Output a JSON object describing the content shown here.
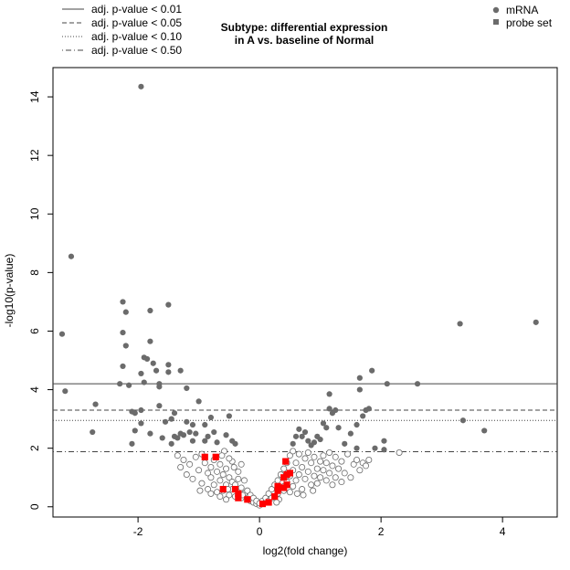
{
  "chart_data": {
    "type": "scatter",
    "title": [
      "Subtype: differential expression",
      "in A vs. baseline of Normal"
    ],
    "xlabel": "log2(fold change)",
    "ylabel": "-log10(p-value)",
    "xlim": [
      -3.4,
      4.9
    ],
    "ylim": [
      -0.35,
      15.0
    ],
    "x_ticks": [
      -2,
      0,
      2,
      4
    ],
    "y_ticks": [
      0,
      2,
      4,
      6,
      8,
      10,
      12,
      14
    ],
    "colors": {
      "significant": "#6b6b6b",
      "nonsignificant_stroke": "#6b6b6b",
      "probe_set": "#ff0000",
      "threshold_line": "#444444"
    },
    "legend_lines": [
      {
        "label": "adj. p-value < 0.01",
        "style": "solid",
        "y": 4.2
      },
      {
        "label": "adj. p-value < 0.05",
        "style": "dashed",
        "y": 3.3
      },
      {
        "label": "adj. p-value < 0.10",
        "style": "dotted",
        "y": 2.95
      },
      {
        "label": "adj. p-value < 0.50",
        "style": "dotdash",
        "y": 1.88
      }
    ],
    "legend_markers": [
      {
        "label": "mRNA",
        "shape": "circle"
      },
      {
        "label": "probe set",
        "shape": "square"
      }
    ],
    "series": [
      {
        "name": "mRNA (significant)",
        "marker": "filled-circle",
        "points": [
          [
            -1.95,
            14.35
          ],
          [
            -3.1,
            8.55
          ],
          [
            -3.25,
            5.9
          ],
          [
            -3.2,
            3.95
          ],
          [
            -2.7,
            3.5
          ],
          [
            -2.75,
            2.55
          ],
          [
            -2.25,
            7.0
          ],
          [
            -2.2,
            6.65
          ],
          [
            -2.25,
            5.95
          ],
          [
            -2.2,
            5.5
          ],
          [
            -2.25,
            4.8
          ],
          [
            -2.3,
            4.2
          ],
          [
            -2.15,
            4.15
          ],
          [
            -2.1,
            3.25
          ],
          [
            -2.05,
            3.2
          ],
          [
            -2.1,
            2.15
          ],
          [
            -2.05,
            2.6
          ],
          [
            -1.8,
            6.7
          ],
          [
            -1.8,
            5.65
          ],
          [
            -1.85,
            5.05
          ],
          [
            -1.9,
            5.1
          ],
          [
            -1.75,
            4.9
          ],
          [
            -1.95,
            4.55
          ],
          [
            -1.9,
            4.25
          ],
          [
            -1.7,
            4.65
          ],
          [
            -1.65,
            4.2
          ],
          [
            -1.65,
            4.1
          ],
          [
            -1.5,
            6.9
          ],
          [
            -1.5,
            4.85
          ],
          [
            -1.5,
            4.6
          ],
          [
            -1.3,
            4.65
          ],
          [
            -1.2,
            4.05
          ],
          [
            -1.95,
            3.3
          ],
          [
            -1.95,
            2.85
          ],
          [
            -1.8,
            2.5
          ],
          [
            -1.65,
            3.45
          ],
          [
            -1.55,
            2.9
          ],
          [
            -1.6,
            2.35
          ],
          [
            -1.45,
            3.0
          ],
          [
            -1.4,
            3.2
          ],
          [
            -1.45,
            2.15
          ],
          [
            -1.4,
            2.4
          ],
          [
            -1.35,
            2.35
          ],
          [
            -1.3,
            2.5
          ],
          [
            -1.25,
            2.45
          ],
          [
            -1.2,
            2.9
          ],
          [
            -1.15,
            2.55
          ],
          [
            -1.1,
            2.8
          ],
          [
            -1.1,
            2.25
          ],
          [
            -1.05,
            2.5
          ],
          [
            -1.0,
            3.6
          ],
          [
            -0.9,
            2.25
          ],
          [
            -0.9,
            2.8
          ],
          [
            -0.85,
            2.4
          ],
          [
            -0.8,
            3.05
          ],
          [
            -0.75,
            2.55
          ],
          [
            -0.7,
            2.2
          ],
          [
            -0.55,
            2.45
          ],
          [
            -0.5,
            3.1
          ],
          [
            -0.45,
            2.25
          ],
          [
            -0.4,
            2.15
          ],
          [
            1.15,
            3.85
          ],
          [
            1.15,
            3.35
          ],
          [
            1.2,
            3.2
          ],
          [
            1.25,
            3.3
          ],
          [
            1.3,
            2.7
          ],
          [
            1.05,
            2.85
          ],
          [
            0.95,
            2.4
          ],
          [
            0.9,
            2.2
          ],
          [
            0.85,
            2.1
          ],
          [
            0.8,
            2.25
          ],
          [
            0.75,
            2.55
          ],
          [
            0.7,
            2.4
          ],
          [
            0.65,
            2.65
          ],
          [
            0.6,
            2.4
          ],
          [
            0.55,
            2.15
          ],
          [
            1.0,
            2.3
          ],
          [
            1.1,
            2.7
          ],
          [
            1.4,
            2.15
          ],
          [
            1.5,
            2.5
          ],
          [
            1.6,
            2.8
          ],
          [
            1.7,
            3.1
          ],
          [
            1.75,
            3.3
          ],
          [
            1.8,
            3.35
          ],
          [
            1.65,
            4.4
          ],
          [
            1.65,
            4.0
          ],
          [
            1.9,
            2.0
          ],
          [
            1.85,
            4.65
          ],
          [
            2.05,
            2.25
          ],
          [
            2.1,
            4.2
          ],
          [
            2.05,
            1.95
          ],
          [
            1.6,
            2.0
          ],
          [
            2.6,
            4.2
          ],
          [
            3.3,
            6.25
          ],
          [
            3.35,
            2.95
          ],
          [
            3.7,
            2.6
          ],
          [
            4.55,
            6.3
          ]
        ]
      },
      {
        "name": "mRNA (not significant)",
        "marker": "open-circle",
        "points": [
          [
            -1.35,
            1.75
          ],
          [
            -1.3,
            1.35
          ],
          [
            -1.25,
            1.6
          ],
          [
            -1.2,
            1.1
          ],
          [
            -1.15,
            1.45
          ],
          [
            -1.1,
            0.95
          ],
          [
            -1.05,
            1.7
          ],
          [
            -1.0,
            1.25
          ],
          [
            -0.95,
            1.8
          ],
          [
            -0.95,
            0.8
          ],
          [
            -0.9,
            1.5
          ],
          [
            -0.85,
            1.15
          ],
          [
            -0.85,
            0.6
          ],
          [
            -0.8,
            1.35
          ],
          [
            -0.8,
            1.0
          ],
          [
            -0.75,
            0.75
          ],
          [
            -0.75,
            1.6
          ],
          [
            -0.7,
            0.5
          ],
          [
            -0.7,
            1.2
          ],
          [
            -0.65,
            0.9
          ],
          [
            -0.65,
            1.45
          ],
          [
            -0.6,
            0.55
          ],
          [
            -0.6,
            1.1
          ],
          [
            -0.55,
            0.75
          ],
          [
            -0.55,
            1.3
          ],
          [
            -0.5,
            0.4
          ],
          [
            -0.5,
            1.0
          ],
          [
            -0.45,
            0.6
          ],
          [
            -0.45,
            1.55
          ],
          [
            -0.45,
            0.85
          ],
          [
            -0.4,
            0.35
          ],
          [
            -0.4,
            0.75
          ],
          [
            -0.35,
            0.55
          ],
          [
            -0.35,
            1.2
          ],
          [
            -0.3,
            0.3
          ],
          [
            -0.3,
            0.65
          ],
          [
            -0.25,
            0.45
          ],
          [
            -0.25,
            0.9
          ],
          [
            -0.2,
            0.25
          ],
          [
            -0.2,
            0.55
          ],
          [
            -0.15,
            0.2
          ],
          [
            -0.15,
            0.4
          ],
          [
            -0.1,
            0.15
          ],
          [
            -0.1,
            0.3
          ],
          [
            -0.05,
            0.1
          ],
          [
            -0.05,
            0.2
          ],
          [
            0.0,
            0.05
          ],
          [
            0.0,
            0.12
          ],
          [
            -0.58,
            1.9
          ],
          [
            -0.62,
            1.75
          ],
          [
            -0.5,
            1.65
          ],
          [
            -0.42,
            1.35
          ],
          [
            -0.35,
            0.95
          ],
          [
            -0.52,
            0.6
          ],
          [
            -0.65,
            0.35
          ],
          [
            -0.55,
            0.25
          ],
          [
            -0.8,
            0.45
          ],
          [
            -0.98,
            0.55
          ],
          [
            -0.3,
            1.45
          ],
          [
            -0.28,
            0.4
          ],
          [
            0.05,
            0.1
          ],
          [
            0.05,
            0.2
          ],
          [
            0.1,
            0.15
          ],
          [
            0.1,
            0.3
          ],
          [
            0.15,
            0.2
          ],
          [
            0.15,
            0.45
          ],
          [
            0.2,
            0.3
          ],
          [
            0.2,
            0.6
          ],
          [
            0.25,
            0.35
          ],
          [
            0.25,
            0.75
          ],
          [
            0.3,
            0.45
          ],
          [
            0.3,
            0.9
          ],
          [
            0.35,
            0.6
          ],
          [
            0.35,
            1.1
          ],
          [
            0.4,
            0.7
          ],
          [
            0.4,
            1.3
          ],
          [
            0.45,
            0.85
          ],
          [
            0.45,
            1.5
          ],
          [
            0.5,
            0.5
          ],
          [
            0.5,
            1.05
          ],
          [
            0.5,
            1.75
          ],
          [
            0.55,
            0.7
          ],
          [
            0.55,
            1.25
          ],
          [
            0.55,
            1.9
          ],
          [
            0.6,
            0.9
          ],
          [
            0.6,
            1.5
          ],
          [
            0.65,
            1.1
          ],
          [
            0.65,
            1.8
          ],
          [
            0.7,
            0.6
          ],
          [
            0.7,
            1.35
          ],
          [
            0.75,
            0.95
          ],
          [
            0.75,
            1.65
          ],
          [
            0.8,
            1.2
          ],
          [
            0.8,
            1.85
          ],
          [
            0.85,
            0.75
          ],
          [
            0.85,
            1.5
          ],
          [
            0.9,
            1.05
          ],
          [
            0.9,
            1.7
          ],
          [
            0.95,
            1.3
          ],
          [
            0.95,
            0.8
          ],
          [
            1.0,
            1.55
          ],
          [
            1.0,
            1.0
          ],
          [
            1.05,
            1.75
          ],
          [
            1.05,
            1.25
          ],
          [
            1.1,
            0.9
          ],
          [
            1.1,
            1.5
          ],
          [
            1.15,
            1.15
          ],
          [
            1.15,
            1.85
          ],
          [
            1.2,
            0.75
          ],
          [
            1.2,
            1.4
          ],
          [
            1.25,
            1.0
          ],
          [
            1.25,
            1.7
          ],
          [
            1.3,
            1.3
          ],
          [
            1.35,
            0.85
          ],
          [
            1.35,
            1.55
          ],
          [
            1.4,
            1.15
          ],
          [
            1.45,
            1.8
          ],
          [
            1.5,
            1.0
          ],
          [
            1.55,
            1.45
          ],
          [
            1.6,
            1.6
          ],
          [
            1.65,
            1.25
          ],
          [
            1.7,
            1.5
          ],
          [
            1.75,
            1.4
          ],
          [
            1.8,
            1.6
          ],
          [
            2.3,
            1.85
          ],
          [
            0.4,
            0.55
          ],
          [
            0.62,
            0.45
          ],
          [
            0.72,
            0.4
          ],
          [
            0.88,
            0.55
          ],
          [
            0.32,
            0.25
          ],
          [
            0.28,
            0.15
          ]
        ]
      },
      {
        "name": "probe set",
        "marker": "filled-square",
        "points": [
          [
            -0.9,
            1.7
          ],
          [
            -0.72,
            1.7
          ],
          [
            -0.6,
            0.6
          ],
          [
            -0.4,
            0.6
          ],
          [
            -0.35,
            0.45
          ],
          [
            -0.35,
            0.3
          ],
          [
            -0.2,
            0.25
          ],
          [
            0.05,
            0.1
          ],
          [
            0.15,
            0.15
          ],
          [
            0.25,
            0.35
          ],
          [
            0.3,
            0.55
          ],
          [
            0.3,
            0.7
          ],
          [
            0.4,
            0.65
          ],
          [
            0.45,
            0.75
          ],
          [
            0.4,
            1.0
          ],
          [
            0.45,
            1.1
          ],
          [
            0.5,
            1.15
          ],
          [
            0.43,
            1.55
          ]
        ]
      }
    ]
  }
}
